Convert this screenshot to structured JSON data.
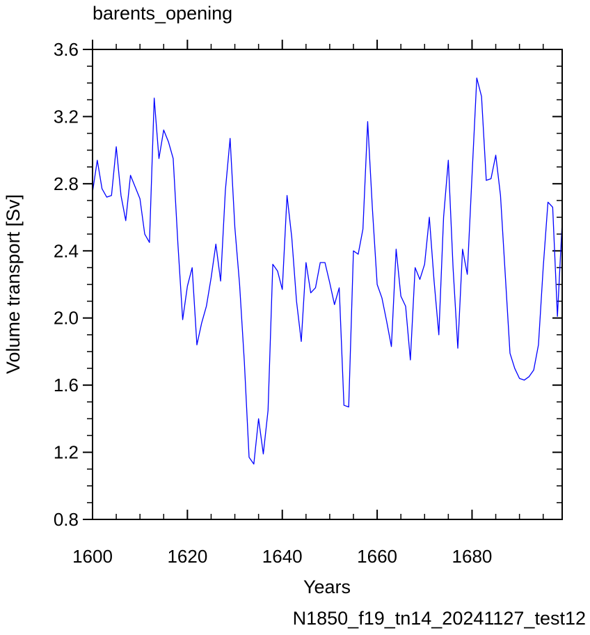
{
  "chart_data": {
    "type": "line",
    "title": "barents_opening",
    "xlabel": "Years",
    "ylabel": "Volume transport [Sv]",
    "case_label": "N1850_f19_tn14_20241127_test12",
    "xlim": [
      1600,
      1699
    ],
    "ylim": [
      0.8,
      3.6
    ],
    "x_ticks": [
      1600,
      1620,
      1640,
      1660,
      1680
    ],
    "x_tick_labels": [
      "1600",
      "1620",
      "1640",
      "1660",
      "1680"
    ],
    "y_ticks": [
      0.8,
      1.2,
      1.6,
      2.0,
      2.4,
      2.8,
      3.2,
      3.6
    ],
    "y_tick_labels": [
      "0.8",
      "1.2",
      "1.6",
      "2.0",
      "2.4",
      "2.8",
      "3.2",
      "3.6"
    ],
    "grid": false,
    "colors": {
      "line": "#0000ff",
      "case_label": "#0000ff",
      "axes": "#000000"
    },
    "series": [
      {
        "x": [
          1600,
          1601,
          1602,
          1603,
          1604,
          1605,
          1606,
          1607,
          1608,
          1609,
          1610,
          1611,
          1612,
          1613,
          1614,
          1615,
          1616,
          1617,
          1618,
          1619,
          1620,
          1621,
          1622,
          1623,
          1624,
          1625,
          1626,
          1627,
          1628,
          1629,
          1630,
          1631,
          1632,
          1633,
          1634,
          1635,
          1636,
          1637,
          1638,
          1639,
          1640,
          1641,
          1642,
          1643,
          1644,
          1645,
          1646,
          1647,
          1648,
          1649,
          1650,
          1651,
          1652,
          1653,
          1654,
          1655,
          1656,
          1657,
          1658,
          1659,
          1660,
          1661,
          1662,
          1663,
          1664,
          1665,
          1666,
          1667,
          1668,
          1669,
          1670,
          1671,
          1672,
          1673,
          1674,
          1675,
          1676,
          1677,
          1678,
          1679,
          1680,
          1681,
          1682,
          1683,
          1684,
          1685,
          1686,
          1687,
          1688,
          1689,
          1690,
          1691,
          1692,
          1693,
          1694,
          1695,
          1696,
          1697,
          1698,
          1699
        ],
        "y": [
          2.75,
          2.94,
          2.77,
          2.72,
          2.73,
          3.02,
          2.73,
          2.58,
          2.85,
          2.78,
          2.71,
          2.5,
          2.45,
          3.31,
          2.95,
          3.12,
          3.05,
          2.95,
          2.44,
          1.99,
          2.19,
          2.3,
          1.84,
          1.97,
          2.07,
          2.24,
          2.44,
          2.22,
          2.76,
          3.07,
          2.54,
          2.2,
          1.74,
          1.17,
          1.13,
          1.4,
          1.19,
          1.45,
          2.32,
          2.28,
          2.17,
          2.73,
          2.48,
          2.1,
          1.86,
          2.33,
          2.15,
          2.18,
          2.33,
          2.33,
          2.21,
          2.08,
          2.18,
          1.48,
          1.47,
          2.4,
          2.38,
          2.53,
          3.17,
          2.65,
          2.2,
          2.12,
          1.98,
          1.83,
          2.41,
          2.13,
          2.07,
          1.75,
          2.3,
          2.23,
          2.32,
          2.6,
          2.22,
          1.9,
          2.6,
          2.94,
          2.3,
          1.82,
          2.41,
          2.26,
          2.85,
          3.43,
          3.32,
          2.82,
          2.83,
          2.97,
          2.73,
          2.26,
          1.79,
          1.7,
          1.64,
          1.63,
          1.65,
          1.69,
          1.84,
          2.3,
          2.69,
          2.66,
          2.01,
          2.57
        ]
      }
    ]
  }
}
